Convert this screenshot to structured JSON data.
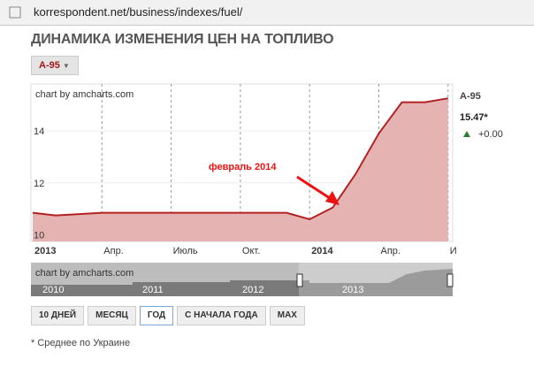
{
  "address_bar": {
    "url": "korrespondent.net/business/indexes/fuel/"
  },
  "header": {
    "title": "ДИНАМИКА ИЗМЕНЕНИЯ ЦЕН НА ТОПЛИВО",
    "fuel_selector": "А-95"
  },
  "chart_data": {
    "type": "line",
    "credit": "chart by amcharts.com",
    "x": [
      "2013-01",
      "2013-02",
      "2013-03",
      "2013-04",
      "2013-05",
      "2013-06",
      "2013-07",
      "2013-08",
      "2013-09",
      "2013-10",
      "2013-11",
      "2013-12",
      "2014-01",
      "2014-02",
      "2014-03",
      "2014-04",
      "2014-05",
      "2014-06",
      "2014-07"
    ],
    "series": [
      {
        "name": "А-95",
        "color": "#b22222",
        "fill": "#e6b3b3",
        "values": [
          10.85,
          10.75,
          10.8,
          10.85,
          10.85,
          10.85,
          10.85,
          10.85,
          10.85,
          10.85,
          10.85,
          10.85,
          10.6,
          11.05,
          12.35,
          13.9,
          15.1,
          15.1,
          15.25
        ]
      }
    ],
    "xticks": [
      {
        "value": "2013-01",
        "label": "2013"
      },
      {
        "value": "2013-04",
        "label": "Апр."
      },
      {
        "value": "2013-07",
        "label": "Июль"
      },
      {
        "value": "2013-10",
        "label": "Окт."
      },
      {
        "value": "2014-01",
        "label": "2014"
      },
      {
        "value": "2014-04",
        "label": "Апр."
      },
      {
        "value": "2014-07",
        "label": "И"
      }
    ],
    "ylim": [
      9.75,
      15.8
    ],
    "yticks": [
      10,
      12,
      14
    ],
    "grid": true,
    "annotation": "февраль 2014",
    "current_value": "15.47*",
    "change": "+0.00"
  },
  "navigator": {
    "credit": "chart by amcharts.com",
    "years": [
      "2010",
      "2011",
      "2012",
      "2013"
    ]
  },
  "period_buttons": [
    "10 ДНЕЙ",
    "МЕСЯЦ",
    "ГОД",
    "С НАЧАЛА ГОДА",
    "MAX"
  ],
  "selected_button": 2,
  "footnote": "* Среднее по Украине"
}
